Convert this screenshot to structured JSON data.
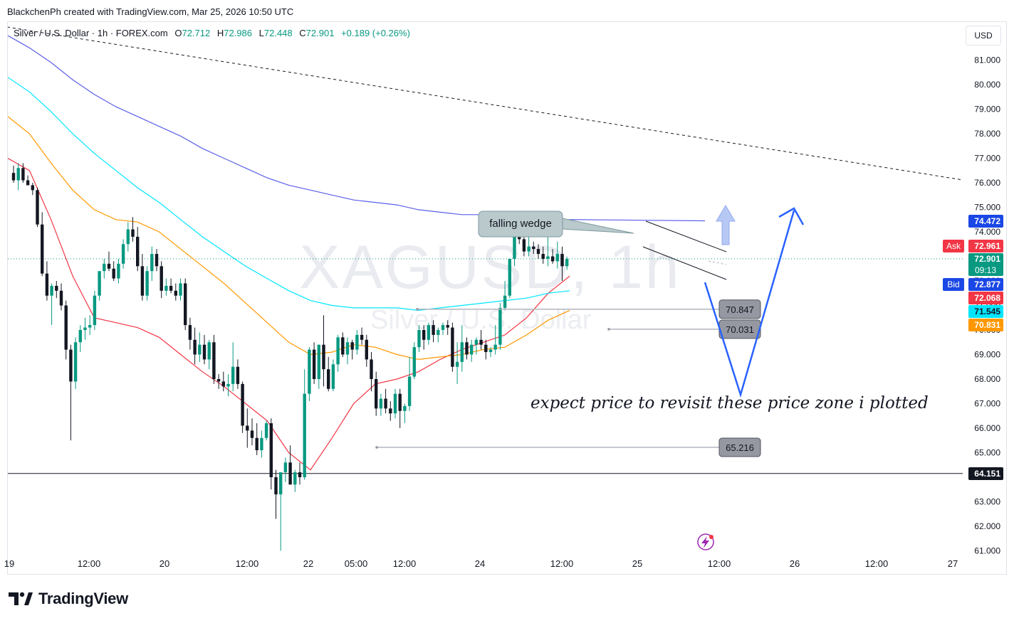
{
  "header": {
    "credit": "BlackchenPh created with TradingView.com, Mar 25, 2026 10:50 UTC"
  },
  "legend": {
    "symbol": "Silver / U.S. Dollar · 1h · FOREX.com",
    "open_label": "O",
    "open": "72.712",
    "high_label": "H",
    "high": "72.986",
    "low_label": "L",
    "low": "72.448",
    "close_label": "C",
    "close": "72.901",
    "change": "+0.189 (+0.26%)"
  },
  "watermark": {
    "ticker": "XAGUSD, 1h",
    "name": "Silver / U.S. Dollar"
  },
  "currency_button": "USD",
  "annotations": {
    "pattern_label": "falling wedge",
    "note": "expect price to revisit these price zone i plotted"
  },
  "brand": {
    "name": "TradingView"
  },
  "chart_data": {
    "type": "candlestick",
    "symbol": "XAGUSD",
    "timeframe": "1h",
    "ylim": [
      61.0,
      82.0
    ],
    "y_ticks": [
      "61.000",
      "62.000",
      "63.000",
      "64.000",
      "65.000",
      "66.000",
      "67.000",
      "68.000",
      "69.000",
      "70.000",
      "71.000",
      "72.000",
      "73.000",
      "74.000",
      "75.000",
      "76.000",
      "77.000",
      "78.000",
      "79.000",
      "80.000",
      "81.000"
    ],
    "x_tick_labels": [
      "19",
      "12:00",
      "20",
      "12:00",
      "22",
      "05:00",
      "12:00",
      "24",
      "12:00",
      "25",
      "12:00",
      "26",
      "12:00",
      "27"
    ],
    "price_tags": [
      {
        "label": "",
        "value": "74.472",
        "color": "#1a47e5"
      },
      {
        "label": "Ask",
        "value": "72.961",
        "color": "#f23645"
      },
      {
        "label": "",
        "value": "72.901",
        "sub": "09:13",
        "color": "#089981"
      },
      {
        "label": "Bid",
        "value": "72.877",
        "color": "#1a47e5"
      },
      {
        "label": "",
        "value": "72.068",
        "color": "#f23645"
      },
      {
        "label": "",
        "value": "71.545",
        "color": "#00e5ff"
      },
      {
        "label": "",
        "value": "70.831",
        "color": "#ff9800"
      },
      {
        "label": "",
        "value": "64.151",
        "color": "#131722"
      }
    ],
    "horizontal_level": 64.151,
    "current_price": 72.901,
    "zones": [
      {
        "label": "70.847",
        "value": 70.847
      },
      {
        "label": "70.031",
        "value": 70.031
      },
      {
        "label": "65.216",
        "value": 65.216
      }
    ],
    "moving_averages": [
      {
        "color": "#f23645",
        "values": [
          77.0,
          76.5,
          74.5,
          72.2,
          70.5,
          70.3,
          70.1,
          69.7,
          69.0,
          68.3,
          67.7,
          67.0,
          66.3,
          65.0,
          64.3,
          65.6,
          67.0,
          67.8,
          68.0,
          68.3,
          68.8,
          69.2,
          69.5,
          69.8,
          70.5,
          71.5,
          72.2
        ]
      },
      {
        "color": "#ff9800",
        "values": [
          78.7,
          78.0,
          76.8,
          75.7,
          74.9,
          74.5,
          74.4,
          74.0,
          73.3,
          72.6,
          71.9,
          71.1,
          70.3,
          69.5,
          69.0,
          69.1,
          69.4,
          69.3,
          69.0,
          68.8,
          68.9,
          69.0,
          69.2,
          69.3,
          69.8,
          70.4,
          70.8
        ]
      },
      {
        "color": "#00e5ff",
        "values": [
          80.3,
          79.7,
          78.9,
          78.0,
          77.2,
          76.5,
          75.8,
          75.2,
          74.5,
          73.8,
          73.2,
          72.6,
          72.1,
          71.6,
          71.2,
          71.0,
          70.9,
          70.9,
          70.9,
          70.8,
          70.9,
          71.0,
          71.1,
          71.2,
          71.3,
          71.5,
          71.6
        ]
      },
      {
        "color": "#5b5fe8",
        "values": [
          82.0,
          81.5,
          80.9,
          80.2,
          79.6,
          79.1,
          78.7,
          78.3,
          77.9,
          77.4,
          77.0,
          76.6,
          76.2,
          75.9,
          75.7,
          75.5,
          75.3,
          75.2,
          75.1,
          74.9,
          74.8,
          74.7,
          74.7,
          74.6,
          74.6,
          74.5,
          74.5
        ]
      }
    ],
    "candles": [
      [
        76.4,
        76.7,
        76.0,
        76.1
      ],
      [
        76.1,
        76.8,
        75.7,
        76.6
      ],
      [
        76.6,
        76.8,
        76.0,
        76.1
      ],
      [
        76.1,
        76.3,
        75.9,
        75.9
      ],
      [
        75.9,
        76.0,
        75.5,
        75.7
      ],
      [
        75.7,
        75.8,
        74.2,
        74.3
      ],
      [
        74.3,
        74.8,
        72.2,
        72.3
      ],
      [
        72.3,
        72.8,
        71.2,
        71.4
      ],
      [
        71.4,
        71.9,
        70.2,
        71.8
      ],
      [
        71.8,
        72.0,
        71.3,
        71.6
      ],
      [
        71.6,
        71.9,
        70.8,
        71.0
      ],
      [
        71.0,
        71.2,
        68.8,
        69.2
      ],
      [
        69.2,
        69.4,
        65.5,
        67.9
      ],
      [
        67.9,
        69.7,
        67.6,
        69.5
      ],
      [
        69.5,
        70.2,
        69.1,
        70.0
      ],
      [
        70.0,
        70.5,
        69.6,
        70.1
      ],
      [
        70.1,
        70.6,
        69.8,
        70.2
      ],
      [
        70.2,
        71.6,
        70.0,
        71.4
      ],
      [
        71.4,
        72.3,
        71.2,
        72.4
      ],
      [
        72.4,
        72.9,
        72.1,
        72.7
      ],
      [
        72.7,
        73.2,
        72.4,
        72.5
      ],
      [
        72.5,
        72.8,
        72.0,
        72.1
      ],
      [
        72.1,
        72.9,
        71.9,
        72.7
      ],
      [
        72.7,
        73.7,
        72.5,
        73.5
      ],
      [
        73.5,
        74.4,
        73.2,
        74.1
      ],
      [
        74.1,
        74.6,
        73.6,
        73.8
      ],
      [
        73.8,
        74.2,
        72.4,
        72.6
      ],
      [
        72.6,
        73.1,
        71.2,
        71.4
      ],
      [
        71.4,
        72.6,
        71.2,
        72.4
      ],
      [
        72.4,
        73.4,
        72.0,
        73.1
      ],
      [
        73.1,
        73.3,
        72.4,
        72.6
      ],
      [
        72.6,
        72.8,
        71.3,
        71.6
      ],
      [
        71.6,
        72.1,
        71.4,
        71.8
      ],
      [
        71.8,
        72.1,
        71.5,
        71.6
      ],
      [
        71.6,
        71.9,
        71.2,
        71.4
      ],
      [
        71.4,
        72.1,
        71.2,
        71.9
      ],
      [
        71.9,
        72.1,
        70.0,
        70.2
      ],
      [
        70.2,
        70.5,
        69.2,
        69.6
      ],
      [
        69.6,
        70.1,
        68.6,
        69.0
      ],
      [
        69.0,
        69.9,
        68.7,
        69.4
      ],
      [
        69.4,
        69.8,
        68.6,
        68.8
      ],
      [
        68.8,
        69.6,
        68.4,
        69.5
      ],
      [
        69.5,
        69.8,
        67.8,
        68.0
      ],
      [
        68.0,
        68.2,
        67.6,
        67.9
      ],
      [
        67.9,
        68.3,
        67.5,
        67.7
      ],
      [
        67.7,
        68.2,
        67.3,
        67.8
      ],
      [
        67.8,
        69.5,
        67.5,
        68.5
      ],
      [
        68.5,
        68.8,
        67.6,
        67.8
      ],
      [
        67.8,
        67.9,
        65.8,
        66.1
      ],
      [
        66.1,
        66.8,
        65.2,
        65.9
      ],
      [
        65.9,
        66.4,
        65.3,
        65.6
      ],
      [
        65.6,
        66.2,
        64.9,
        65.1
      ],
      [
        65.1,
        65.9,
        64.8,
        65.6
      ],
      [
        65.6,
        66.3,
        65.5,
        66.2
      ],
      [
        66.2,
        66.4,
        63.5,
        64.0
      ],
      [
        64.0,
        64.3,
        62.3,
        63.3
      ],
      [
        63.3,
        64.2,
        61.0,
        64.2
      ],
      [
        64.2,
        64.8,
        63.8,
        64.6
      ],
      [
        64.6,
        65.3,
        63.9,
        63.7
      ],
      [
        63.7,
        64.3,
        63.4,
        64.2
      ],
      [
        64.2,
        64.6,
        63.7,
        64.0
      ],
      [
        64.0,
        68.4,
        63.9,
        67.4
      ],
      [
        67.4,
        69.3,
        67.1,
        69.2
      ],
      [
        69.2,
        69.5,
        67.8,
        68.0
      ],
      [
        68.0,
        69.4,
        67.6,
        69.4
      ],
      [
        69.4,
        70.6,
        67.7,
        68.4
      ],
      [
        68.4,
        68.9,
        67.5,
        67.6
      ],
      [
        67.6,
        68.8,
        67.5,
        68.6
      ],
      [
        68.6,
        69.8,
        68.3,
        69.7
      ],
      [
        69.7,
        69.9,
        68.9,
        69.0
      ],
      [
        69.0,
        69.7,
        68.6,
        69.5
      ],
      [
        69.5,
        69.6,
        68.8,
        69.2
      ],
      [
        69.2,
        70.0,
        69.0,
        69.8
      ],
      [
        69.8,
        70.1,
        69.4,
        69.6
      ],
      [
        69.6,
        69.8,
        68.5,
        68.8
      ],
      [
        68.8,
        69.1,
        67.5,
        68.0
      ],
      [
        68.0,
        68.3,
        66.5,
        66.8
      ],
      [
        66.8,
        67.4,
        66.5,
        67.2
      ],
      [
        67.2,
        67.6,
        66.6,
        66.8
      ],
      [
        66.8,
        67.1,
        66.3,
        66.6
      ],
      [
        66.6,
        67.6,
        66.4,
        67.4
      ],
      [
        67.4,
        67.6,
        66.0,
        66.7
      ],
      [
        66.7,
        67.0,
        66.2,
        66.9
      ],
      [
        66.9,
        68.9,
        66.7,
        68.1
      ],
      [
        68.1,
        69.5,
        68.0,
        69.3
      ],
      [
        69.3,
        70.2,
        69.1,
        70.0
      ],
      [
        70.0,
        70.2,
        69.2,
        69.6
      ],
      [
        69.6,
        70.3,
        69.4,
        70.2
      ],
      [
        70.2,
        70.4,
        69.5,
        69.8
      ],
      [
        69.8,
        70.1,
        69.5,
        70.0
      ],
      [
        70.0,
        70.3,
        69.8,
        70.2
      ],
      [
        70.2,
        70.4,
        69.8,
        70.1
      ],
      [
        70.1,
        70.3,
        68.3,
        68.5
      ],
      [
        68.5,
        69.5,
        67.8,
        68.7
      ],
      [
        68.7,
        70.2,
        68.3,
        69.5
      ],
      [
        69.5,
        69.7,
        68.8,
        69.0
      ],
      [
        69.0,
        69.6,
        68.7,
        69.4
      ],
      [
        69.4,
        69.7,
        69.0,
        69.6
      ],
      [
        69.6,
        70.0,
        69.2,
        69.4
      ],
      [
        69.4,
        69.6,
        68.8,
        69.1
      ],
      [
        69.1,
        69.3,
        68.9,
        69.2
      ],
      [
        69.2,
        70.2,
        69.0,
        69.4
      ],
      [
        69.4,
        71.1,
        69.2,
        70.9
      ],
      [
        70.9,
        72.0,
        70.8,
        71.4
      ],
      [
        71.4,
        72.8,
        71.3,
        72.9
      ],
      [
        72.9,
        74.0,
        72.6,
        73.8
      ],
      [
        73.8,
        74.6,
        73.5,
        73.7
      ],
      [
        73.7,
        73.9,
        73.0,
        73.2
      ],
      [
        73.2,
        74.0,
        73.0,
        73.4
      ],
      [
        73.4,
        73.6,
        73.1,
        73.3
      ],
      [
        73.3,
        73.5,
        72.9,
        73.1
      ],
      [
        73.1,
        73.4,
        72.7,
        72.9
      ],
      [
        72.9,
        73.8,
        72.6,
        73.0
      ],
      [
        73.0,
        73.3,
        72.7,
        72.8
      ],
      [
        72.8,
        73.6,
        72.5,
        73.1
      ],
      [
        73.1,
        73.4,
        72.0,
        72.6
      ],
      [
        72.6,
        72.99,
        72.45,
        72.9
      ]
    ]
  }
}
